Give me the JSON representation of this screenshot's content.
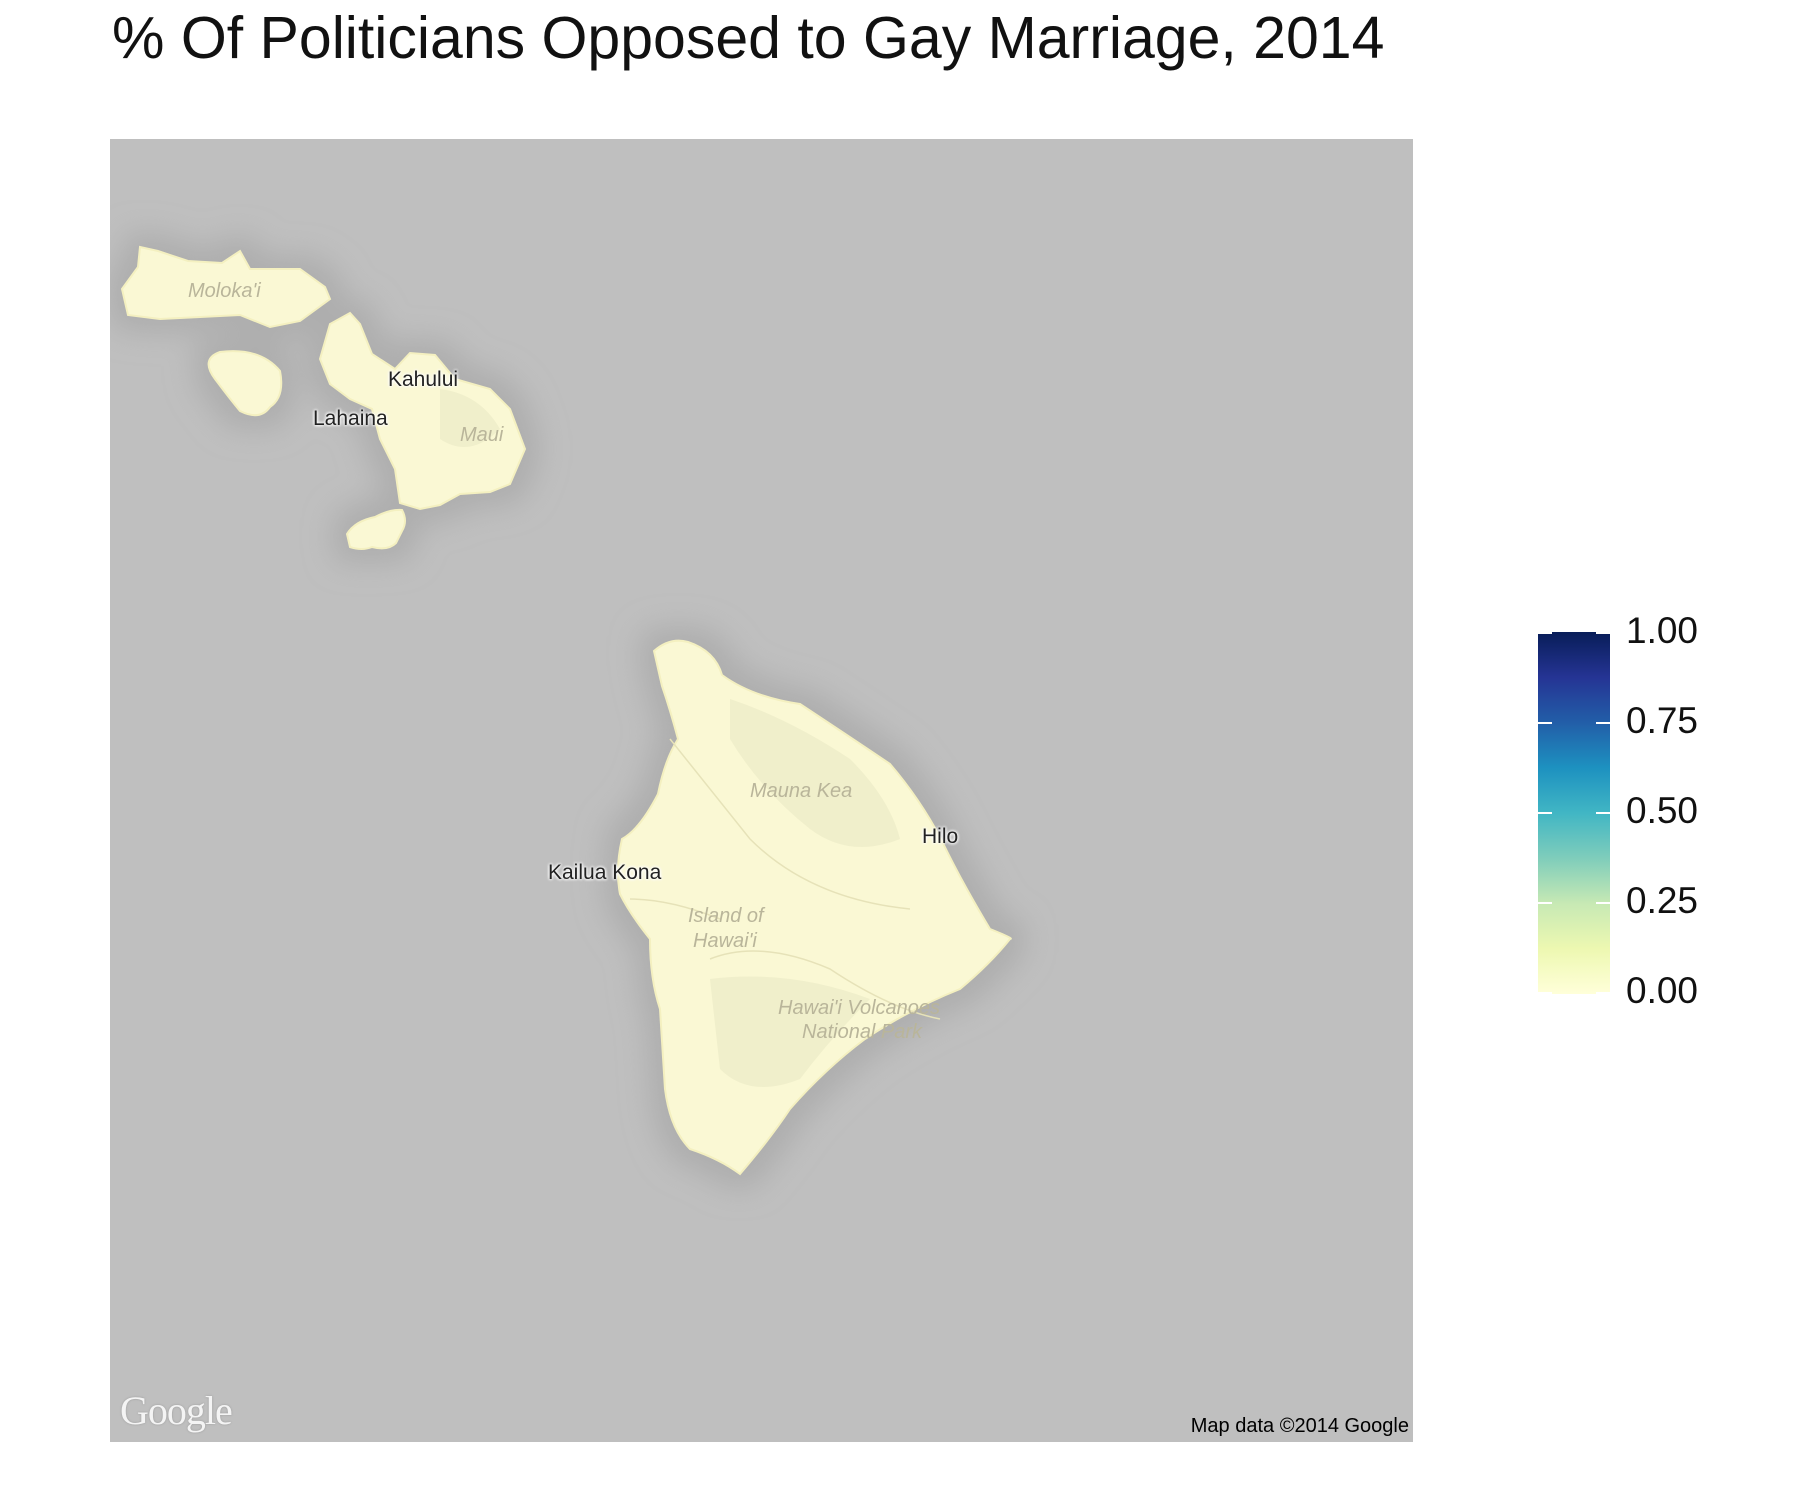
{
  "title": "% Of Politicians Opposed to Gay Marriage, 2014",
  "map": {
    "water_color": "#bfbfbf",
    "land_color": "#faf8d4",
    "place_labels": {
      "molokai": "Moloka'i",
      "maui": "Maui",
      "mauna_kea": "Mauna Kea",
      "island_of_hawaii_line1": "Island of",
      "island_of_hawaii_line2": "Hawai'i",
      "volcanoes_line1": "Hawai'i Volcanoes",
      "volcanoes_line2": "National Park"
    },
    "city_labels": {
      "kahului": "Kahului",
      "lahaina": "Lahaina",
      "hilo": "Hilo",
      "kailua_kona": "Kailua Kona"
    },
    "logo": "Google",
    "attribution": "Map data ©2014 Google"
  },
  "legend": {
    "type": "continuous colorbar",
    "range": [
      0,
      1
    ],
    "colors": [
      "#ffffd9",
      "#edf8b1",
      "#c7e9b4",
      "#7fcdbb",
      "#41b6c4",
      "#1d91c0",
      "#225ea8",
      "#253494",
      "#081d58"
    ],
    "ticks": [
      "1.00",
      "0.75",
      "0.50",
      "0.25",
      "0.00"
    ]
  },
  "chart_data": {
    "type": "heatmap",
    "title": "% Of Politicians Opposed to Gay Marriage, 2014",
    "fill_scale": {
      "min": 0.0,
      "max": 1.0,
      "palette": "YlGnBu"
    },
    "regions": [
      {
        "name": "Hawai'i",
        "value": 0.0
      }
    ]
  }
}
